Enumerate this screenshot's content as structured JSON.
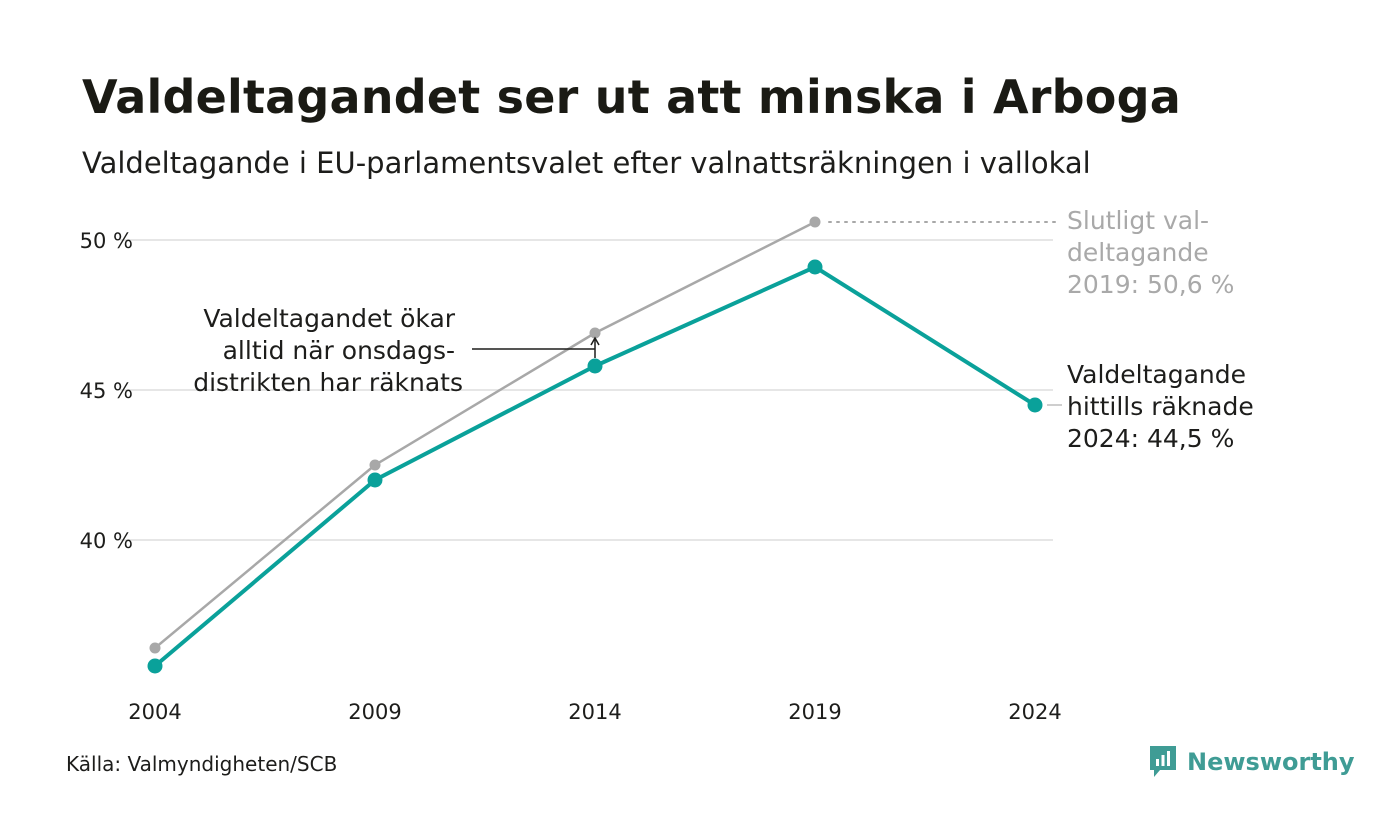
{
  "title": "Valdeltagandet ser ut att minska i Arboga",
  "subtitle": "Valdeltagande i EU-parlamentsvalet efter valnattsräkningen i vallokal",
  "source": "Källa: Valmyndigheten/SCB",
  "brand": "Newsworthy",
  "colors": {
    "accent": "#0aa19a",
    "final": "#a8a8a8",
    "grid": "#e6e6e6",
    "brand": "#3f9c95"
  },
  "chart_data": {
    "type": "line",
    "x": [
      "2004",
      "2009",
      "2014",
      "2019",
      "2024"
    ],
    "ylim": [
      36,
      52
    ],
    "yticks": [
      40,
      45,
      50
    ],
    "ytick_labels": [
      "40 %",
      "45 %",
      "50 %"
    ],
    "grid": true,
    "series": [
      {
        "values": [
          36.4,
          42.5,
          46.9,
          50.6,
          null
        ]
      },
      {
        "values": [
          35.8,
          42.0,
          45.8,
          49.1,
          44.5
        ]
      }
    ],
    "annotations": {
      "final_2019": [
        "Slutligt val-",
        "deltagande",
        "2019: 50,6 %"
      ],
      "counted_2024": [
        "Valdeltagande",
        "hittills räknade",
        "2024: 44,5 %"
      ],
      "wednesday": [
        "Valdeltagandet ökar",
        "alltid när onsdags-",
        "distrikten har räknats"
      ]
    }
  }
}
